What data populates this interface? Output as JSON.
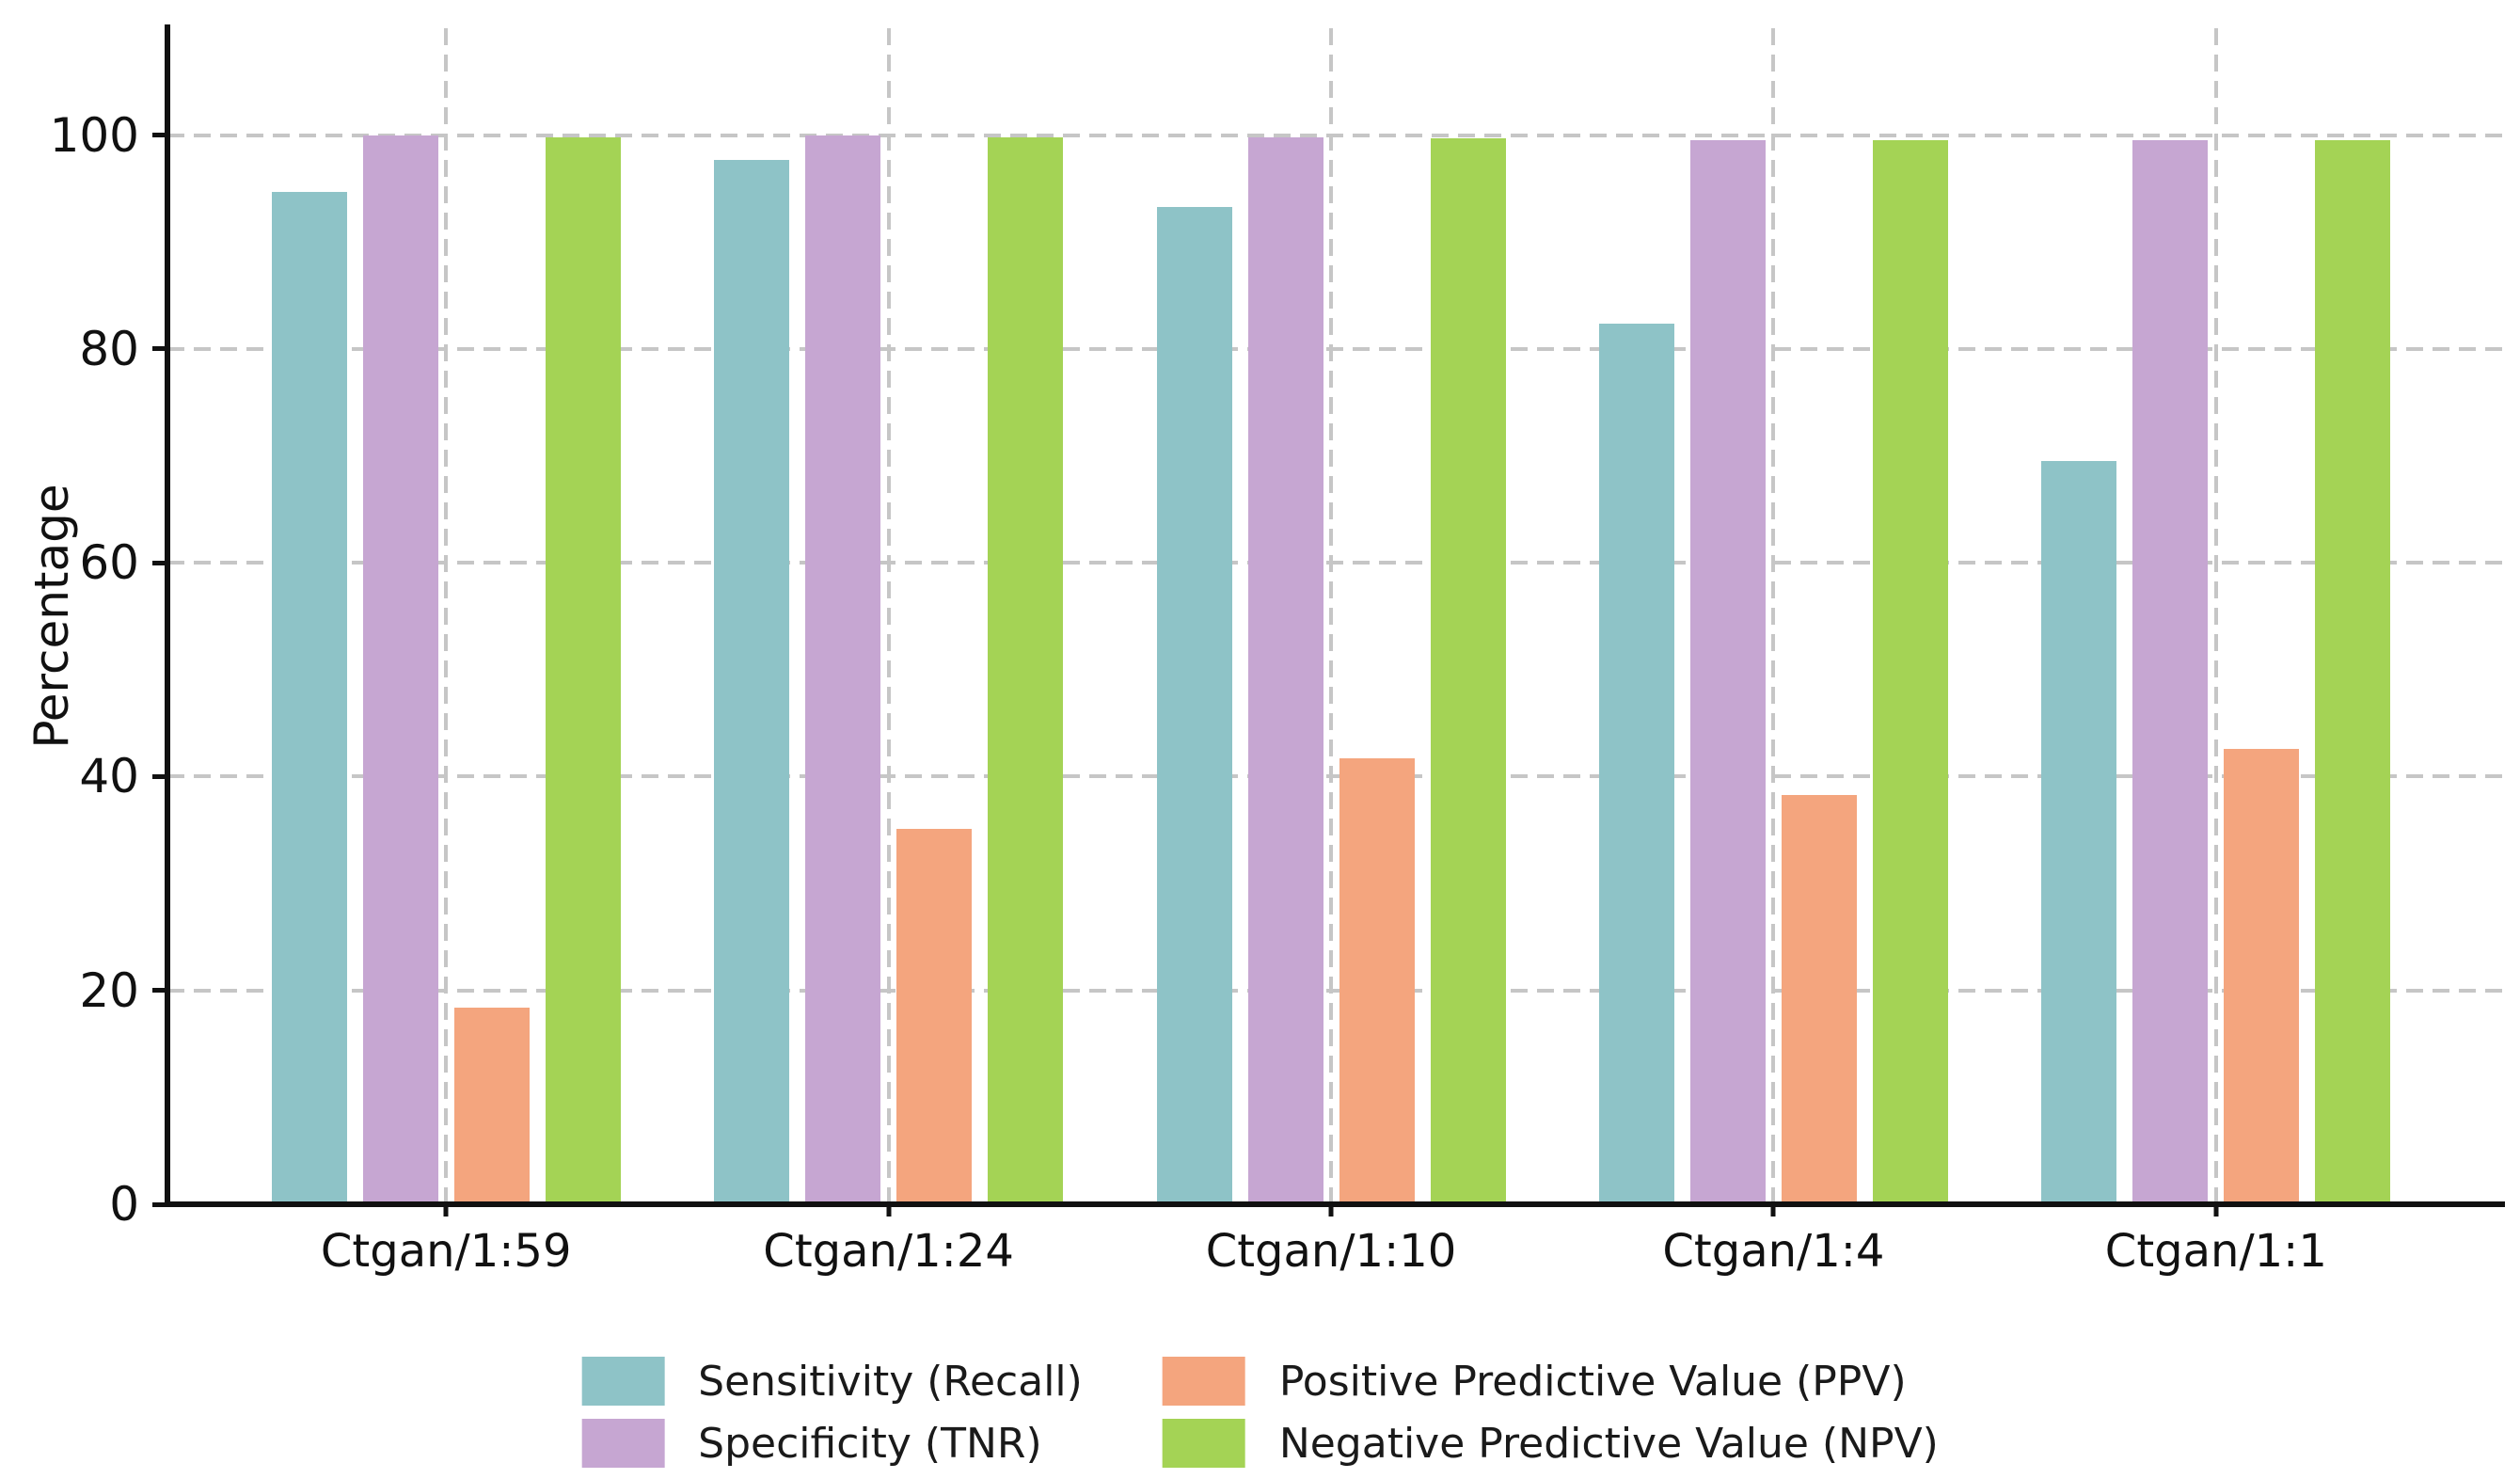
{
  "chart_data": {
    "type": "bar",
    "title": "",
    "xlabel": "",
    "ylabel": "Percentage",
    "ylim": [
      0,
      110
    ],
    "yticks": [
      0,
      20,
      40,
      60,
      80,
      100
    ],
    "grid": {
      "horizontal": true,
      "vertical": true,
      "style": "dashed",
      "color": "#c6c6c6"
    },
    "legend_position": "bottom-center, two columns, frameless",
    "categories": [
      "Ctgan/1:59",
      "Ctgan/1:24",
      "Ctgan/1:10",
      "Ctgan/1:4",
      "Ctgan/1:1"
    ],
    "series": [
      {
        "name": "Sensitivity (Recall)",
        "color": "#8ec3c7",
        "values": [
          94.7,
          97.7,
          93.3,
          82.4,
          69.5
        ]
      },
      {
        "name": "Specificity (TNR)",
        "color": "#c6a6d2",
        "values": [
          100.0,
          100.0,
          99.8,
          99.5,
          99.5
        ]
      },
      {
        "name": "Positive Predictive Value (PPV)",
        "color": "#f4a57e",
        "values": [
          18.4,
          35.1,
          41.7,
          38.3,
          42.6
        ]
      },
      {
        "name": "Negative Predictive Value (NPV)",
        "color": "#a4d355",
        "values": [
          99.8,
          99.8,
          99.7,
          99.5,
          99.5
        ]
      }
    ],
    "legend_order": [
      0,
      2,
      1,
      3
    ],
    "spine_color": "#111111",
    "text_color": "#111111"
  }
}
